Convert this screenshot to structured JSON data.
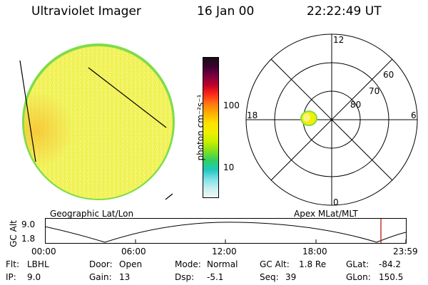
{
  "header": {
    "title": "Ultraviolet Imager",
    "date": "16 Jan 00",
    "time": "22:22:49 UT"
  },
  "colorbar": {
    "label": "photon cm⁻²s⁻¹",
    "ticks": [
      "100",
      "10"
    ],
    "colors": [
      "#111111",
      "#3a0030",
      "#7a0040",
      "#c00028",
      "#ff2a1a",
      "#ff7a10",
      "#ffb000",
      "#ffe000",
      "#f0f000",
      "#c8f000",
      "#80e020",
      "#30d060",
      "#20c8c0",
      "#80e0e8",
      "#c8f0f0",
      "#f4f8f8"
    ]
  },
  "polar": {
    "mlt_labels": [
      "12",
      "18",
      "6",
      "0"
    ],
    "mlat_labels": [
      "60",
      "70",
      "80"
    ]
  },
  "panels": {
    "left_label": "Geographic Lat/Lon",
    "right_label": "Apex MLat/MLT"
  },
  "alt_plot": {
    "ylabel": "GC Alt",
    "yticks": [
      "9.0",
      "1.8"
    ],
    "xticks": [
      "00:00",
      "06:00",
      "12:00",
      "18:00",
      "23:59"
    ]
  },
  "footer": {
    "row1": [
      {
        "key": "Flt:",
        "value": "LBHL"
      },
      {
        "key": "Door:",
        "value": "Open"
      },
      {
        "key": "Mode:",
        "value": "Normal"
      },
      {
        "key": "GC Alt:",
        "value": "1.8 Re"
      },
      {
        "key": "GLat:",
        "value": "-84.2"
      }
    ],
    "row2": [
      {
        "key": "IP:",
        "value": "9.0"
      },
      {
        "key": "Gain:",
        "value": "13"
      },
      {
        "key": "Dsp:",
        "value": "-5.1"
      },
      {
        "key": "Seq:",
        "value": "39"
      },
      {
        "key": "GLon:",
        "value": "150.5"
      }
    ]
  }
}
